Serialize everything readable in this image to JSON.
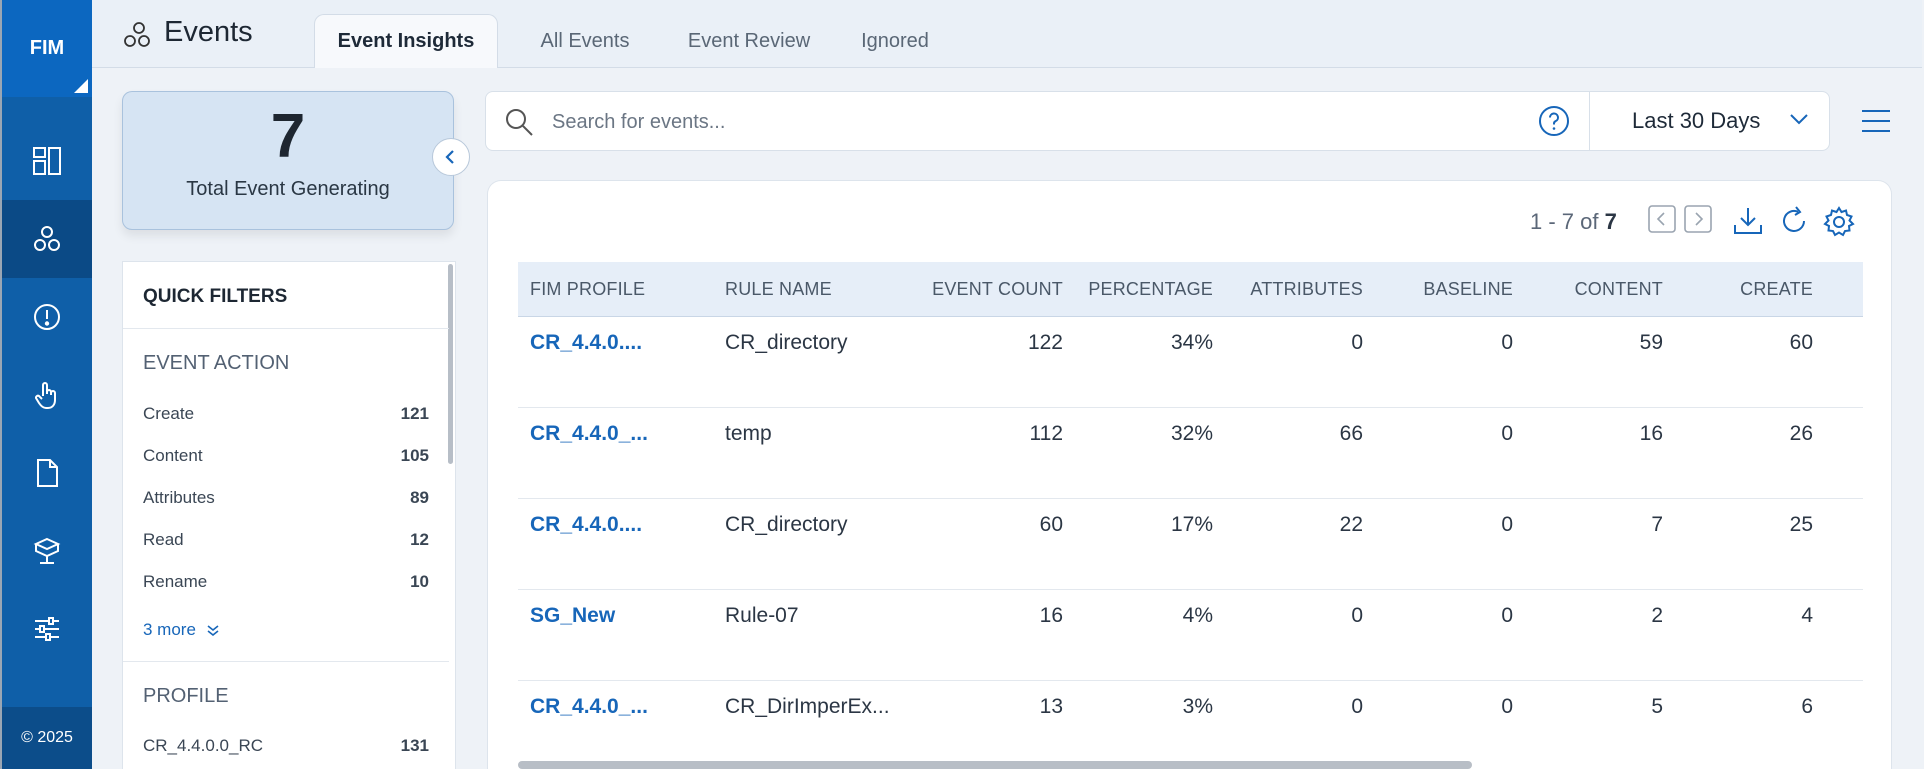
{
  "sidebar": {
    "logo": "FIM",
    "copyright": "© 2025",
    "items": [
      {
        "icon": "dashboard-icon"
      },
      {
        "icon": "events-icon",
        "active": true
      },
      {
        "icon": "alert-icon"
      },
      {
        "icon": "touch-icon"
      },
      {
        "icon": "document-icon"
      },
      {
        "icon": "assets-icon"
      },
      {
        "icon": "settings-sliders-icon"
      }
    ]
  },
  "header": {
    "title": "Events",
    "tabs": [
      {
        "label": "Event Insights",
        "active": true
      },
      {
        "label": "All Events"
      },
      {
        "label": "Event Review"
      },
      {
        "label": "Ignored"
      }
    ]
  },
  "summary": {
    "total_value": "7",
    "total_label": "Total Event Generating"
  },
  "quick_filters": {
    "title": "QUICK FILTERS",
    "event_action": {
      "heading": "EVENT ACTION",
      "items": [
        {
          "label": "Create",
          "count": "121"
        },
        {
          "label": "Content",
          "count": "105"
        },
        {
          "label": "Attributes",
          "count": "89"
        },
        {
          "label": "Read",
          "count": "12"
        },
        {
          "label": "Rename",
          "count": "10"
        }
      ],
      "more": "3 more"
    },
    "profile": {
      "heading": "PROFILE",
      "items": [
        {
          "label": "CR_4.4.0.0_RC",
          "count": "131"
        }
      ]
    }
  },
  "search": {
    "placeholder": "Search for events...",
    "date_range": "Last 30 Days"
  },
  "pager": {
    "range": "1 - 7 of",
    "total": "7"
  },
  "table": {
    "columns": [
      "FIM PROFILE",
      "RULE NAME",
      "EVENT COUNT",
      "PERCENTAGE",
      "ATTRIBUTES",
      "BASELINE",
      "CONTENT",
      "CREATE"
    ],
    "rows": [
      [
        "CR_4.4.0....",
        "CR_directory",
        "122",
        "34%",
        "0",
        "0",
        "59",
        "60"
      ],
      [
        "CR_4.4.0_...",
        "temp",
        "112",
        "32%",
        "66",
        "0",
        "16",
        "26"
      ],
      [
        "CR_4.4.0....",
        "CR_directory",
        "60",
        "17%",
        "22",
        "0",
        "7",
        "25"
      ],
      [
        "SG_New",
        "Rule-07",
        "16",
        "4%",
        "0",
        "0",
        "2",
        "4"
      ],
      [
        "CR_4.4.0_...",
        "CR_DirImperEx...",
        "13",
        "3%",
        "0",
        "0",
        "5",
        "6"
      ]
    ]
  }
}
